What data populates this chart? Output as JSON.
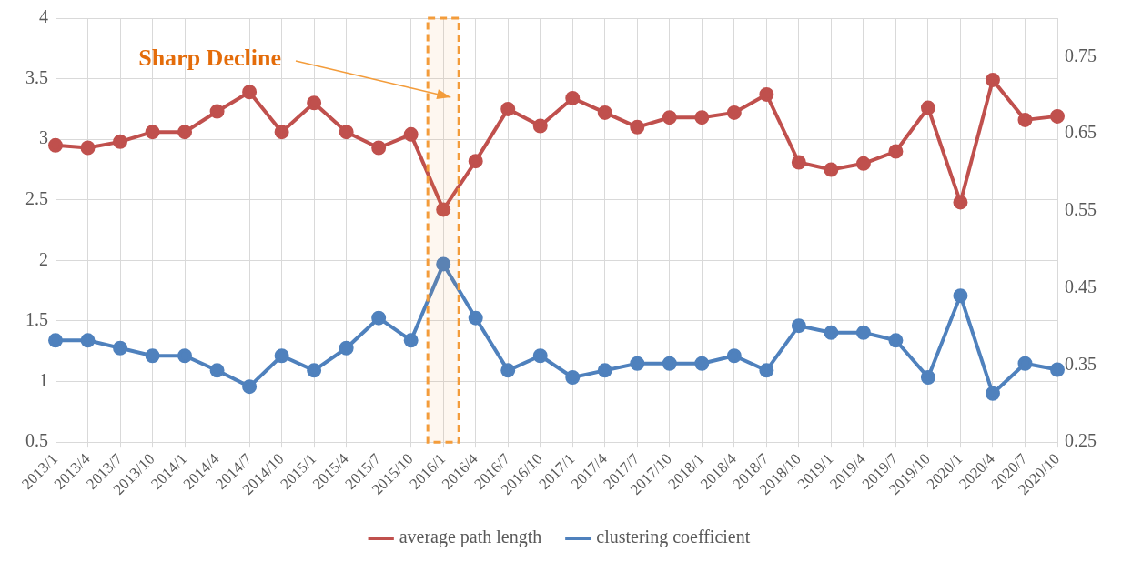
{
  "chart_data": {
    "type": "line",
    "categories": [
      "2013/1",
      "2013/4",
      "2013/7",
      "2013/10",
      "2014/1",
      "2014/4",
      "2014/7",
      "2014/10",
      "2015/1",
      "2015/4",
      "2015/7",
      "2015/10",
      "2016/1",
      "2016/4",
      "2016/7",
      "2016/10",
      "2017/1",
      "2017/4",
      "2017/7",
      "2017/10",
      "2018/1",
      "2018/4",
      "2018/7",
      "2018/10",
      "2019/1",
      "2019/4",
      "2019/7",
      "2019/10",
      "2020/1",
      "2020/4",
      "2020/7",
      "2020/10"
    ],
    "series": [
      {
        "name": "average path length",
        "color": "#c0504d",
        "values": [
          2.95,
          2.93,
          2.98,
          3.06,
          3.06,
          3.23,
          3.39,
          3.06,
          3.3,
          3.06,
          2.93,
          3.04,
          2.42,
          2.82,
          3.25,
          3.11,
          3.34,
          3.22,
          3.1,
          3.18,
          3.18,
          3.22,
          3.37,
          2.81,
          2.75,
          2.8,
          2.9,
          3.26,
          2.48,
          3.49,
          3.16,
          3.19
        ]
      },
      {
        "name": "clustering coefficient",
        "color": "#4f81bd",
        "axis": "y2",
        "values": [
          0.382,
          0.382,
          0.372,
          0.362,
          0.362,
          0.343,
          0.322,
          0.362,
          0.343,
          0.372,
          0.411,
          0.382,
          0.481,
          0.411,
          0.343,
          0.362,
          0.334,
          0.343,
          0.352,
          0.352,
          0.352,
          0.362,
          0.343,
          0.401,
          0.392,
          0.392,
          0.382,
          0.334,
          0.44,
          0.313,
          0.352,
          0.344
        ]
      }
    ],
    "ylim": [
      0.5,
      4
    ],
    "yticks": [
      0.5,
      1,
      1.5,
      2,
      2.5,
      3,
      3.5,
      4
    ],
    "y2lim": [
      0.25,
      0.8
    ],
    "y2ticks": [
      0.25,
      0.35,
      0.45,
      0.55,
      0.65,
      0.75
    ],
    "annotations": [
      "Sharp Decline"
    ],
    "bands": [
      {
        "axis": "x",
        "from": "2016/1",
        "to": "2016/1",
        "color": "#f39c3b"
      }
    ],
    "grid": true,
    "legend": "bottom",
    "marker": "circle",
    "line_style": "solid"
  }
}
